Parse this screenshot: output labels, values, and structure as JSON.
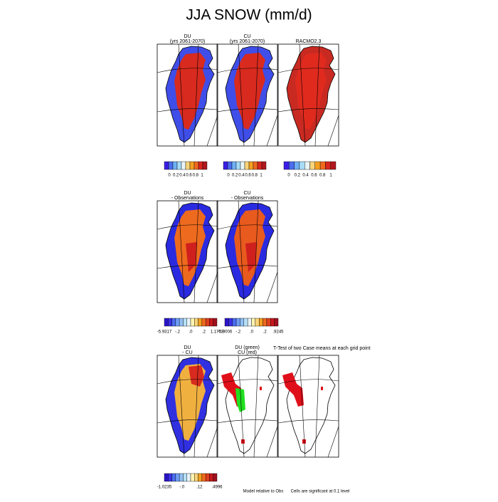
{
  "title": "JJA SNOW (mm/d)",
  "rows": [
    {
      "panels": [
        {
          "title": [
            "DU",
            "(yrs 2061-2070)"
          ]
        },
        {
          "title": [
            "CU",
            "(yrs 2061-2070)"
          ]
        },
        {
          "title": [
            "RACMO2.3"
          ]
        }
      ],
      "colorbars": [
        {
          "labels": [
            "0",
            "0.2",
            "0.4",
            "0.6",
            "0.8",
            "1"
          ]
        },
        {
          "labels": [
            "0",
            "0.2",
            "0.4",
            "0.6",
            "0.8",
            "1"
          ]
        },
        {
          "labels": [
            "0",
            "0.2",
            "0.4",
            "0.6",
            "0.8",
            "1"
          ]
        }
      ]
    },
    {
      "panels": [
        {
          "title": [
            "DU",
            "- Observations"
          ]
        },
        {
          "title": [
            "CU",
            "- Observations"
          ]
        }
      ],
      "colorbars": [
        {
          "labels": [
            "-5.9317",
            "-.2",
            ".0",
            ".2",
            "1.1703"
          ]
        },
        {
          "labels": [
            "-5.9006",
            "-.2",
            ".0",
            ".2",
            ".9245"
          ]
        }
      ]
    },
    {
      "panels": [
        {
          "title": [
            "DU",
            "- CU"
          ]
        },
        {
          "title": [
            "DU (green)",
            "CU (red)"
          ],
          "note": "T-Test of two Case means at each grid point"
        },
        {
          "title": []
        }
      ],
      "colorbars": [
        {
          "labels": [
            "-1.0235",
            "-.0",
            ".12",
            ".4996"
          ]
        }
      ]
    }
  ],
  "notes": [
    "Model relative to Obs",
    "Cells are significant at 0.1 level"
  ]
}
